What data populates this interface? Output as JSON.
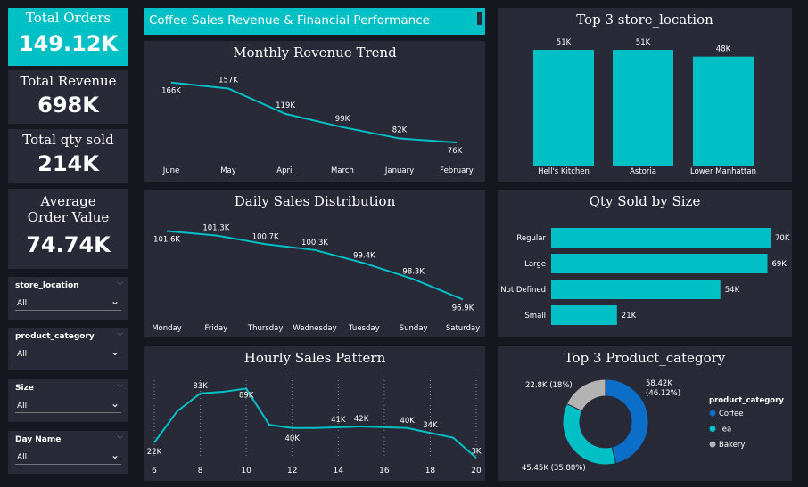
{
  "colors": {
    "accent": "#00c0c6",
    "panel": "#282a38",
    "bg": "#161820",
    "coffee": "#0b6ec9",
    "tea": "#00c0c6",
    "bakery": "#b3b3b3"
  },
  "kpis": {
    "total_orders": {
      "label": "Total Orders",
      "value": "149.12K"
    },
    "total_revenue": {
      "label": "Total Revenue",
      "value": "698K"
    },
    "total_qty": {
      "label": "Total qty sold",
      "value": "214K"
    },
    "avg_order": {
      "label": "Average Order Value",
      "value": "74.74K"
    }
  },
  "header": {
    "title": "Coffee Sales Revenue & Financial Performance"
  },
  "slicers": [
    {
      "label": "store_location",
      "value": "All"
    },
    {
      "label": "product_category",
      "value": "All"
    },
    {
      "label": "Size",
      "value": "All"
    },
    {
      "label": "Day Name",
      "value": "All"
    }
  ],
  "chart_data": [
    {
      "id": "monthly",
      "type": "line",
      "title": "Monthly Revenue Trend",
      "categories": [
        "June",
        "May",
        "April",
        "March",
        "January",
        "February"
      ],
      "values": [
        166,
        157,
        119,
        99,
        82,
        76
      ],
      "labels": [
        "166K",
        "157K",
        "119K",
        "99K",
        "82K",
        "76K"
      ],
      "ylim": [
        60,
        175
      ]
    },
    {
      "id": "daily",
      "type": "line",
      "title": "Daily Sales Distribution",
      "categories": [
        "Monday",
        "Friday",
        "Thursday",
        "Wednesday",
        "Tuesday",
        "Sunday",
        "Saturday"
      ],
      "values": [
        101.6,
        101.3,
        100.7,
        100.3,
        99.4,
        98.3,
        96.9
      ],
      "labels": [
        "101.6K",
        "101.3K",
        "100.7K",
        "100.3K",
        "99.4K",
        "98.3K",
        "96.9K"
      ],
      "ylim": [
        96.5,
        102
      ]
    },
    {
      "id": "hourly",
      "type": "line",
      "title": "Hourly Sales Pattern",
      "x": [
        6,
        7,
        8,
        9,
        10,
        11,
        12,
        13,
        14,
        15,
        16,
        17,
        18,
        19,
        20
      ],
      "values": [
        22,
        61,
        83,
        85,
        89,
        44,
        40,
        40,
        41,
        42,
        41,
        40,
        34,
        28,
        3
      ],
      "labels": [
        "22K",
        "",
        "83K",
        "",
        "89K",
        "",
        "40K",
        "",
        "41K",
        "42K",
        "",
        "40K",
        "34K",
        "",
        "3K"
      ],
      "xticks": [
        6,
        8,
        10,
        12,
        14,
        16,
        18,
        20
      ],
      "ylim": [
        0,
        95
      ]
    },
    {
      "id": "stores",
      "type": "bar",
      "title": "Top 3 store_location",
      "categories": [
        "Hell's Kitchen",
        "Astoria",
        "Lower Manhattan"
      ],
      "values": [
        51,
        51,
        48
      ],
      "labels": [
        "51K",
        "51K",
        "48K"
      ],
      "ylim": [
        0,
        51
      ]
    },
    {
      "id": "size",
      "type": "bar",
      "orientation": "horizontal",
      "title": "Qty Sold by Size",
      "categories": [
        "Regular",
        "Large",
        "Not Defined",
        "Small"
      ],
      "values": [
        70,
        69,
        54,
        21
      ],
      "labels": [
        "70K",
        "69K",
        "54K",
        "21K"
      ],
      "xlim": [
        0,
        70
      ]
    },
    {
      "id": "category",
      "type": "pie",
      "title": "Top 3 Product_category",
      "legend_title": "product_category",
      "categories": [
        "Coffee",
        "Tea",
        "Bakery"
      ],
      "values": [
        58.42,
        45.45,
        22.8
      ],
      "labels": [
        "58.42K (46.12%)",
        "45.45K (35.88%)",
        "22.8K (18%)"
      ],
      "legend": "right"
    }
  ]
}
